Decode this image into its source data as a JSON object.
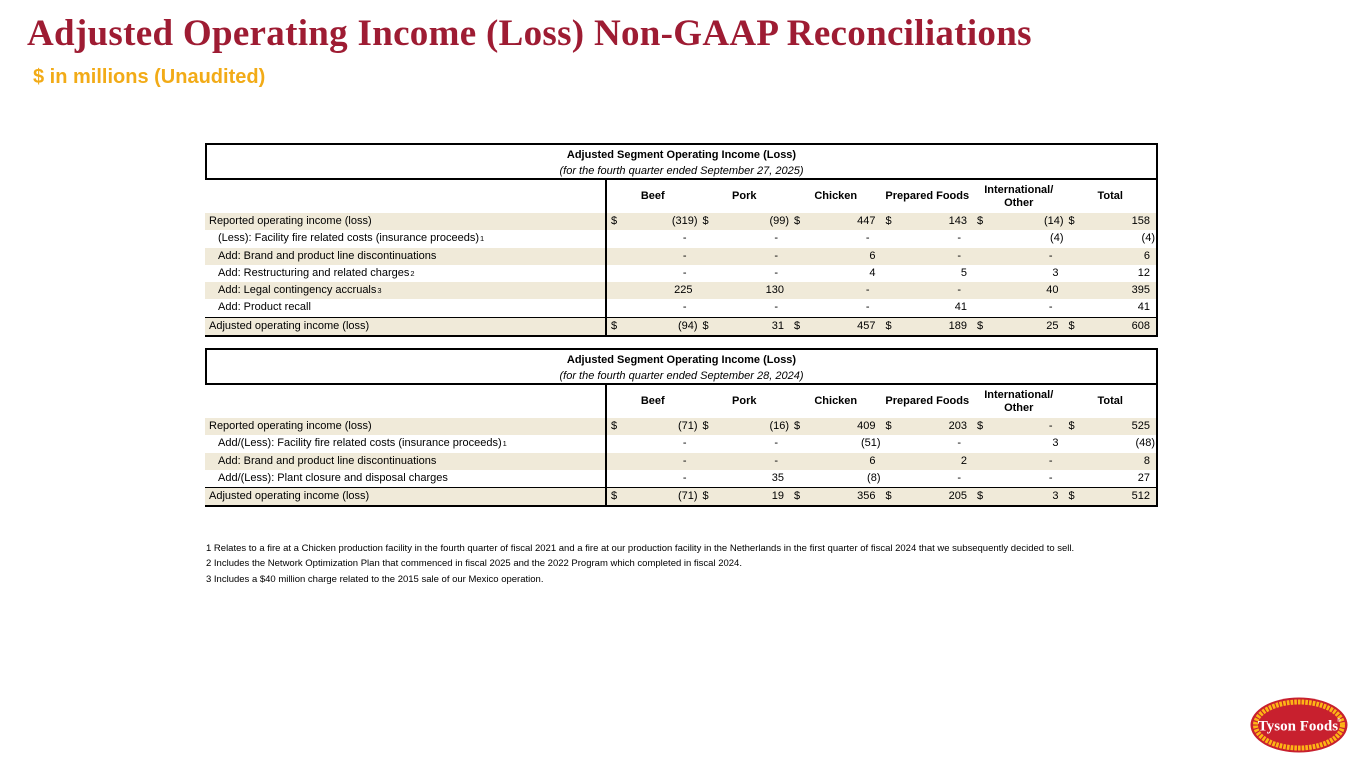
{
  "header": {
    "title": "Adjusted Operating Income (Loss) Non-GAAP Reconciliations",
    "subtitle": "$ in millions (Unaudited)"
  },
  "tables": [
    {
      "title": "Adjusted Segment Operating Income (Loss)",
      "period": "(for the fourth quarter ended September 27, 2025)",
      "columns": [
        "Beef",
        "Pork",
        "Chicken",
        "Prepared Foods",
        "International/Other",
        "Total"
      ],
      "rows": [
        {
          "label": "Reported operating income (loss)",
          "sup": "",
          "indent": false,
          "dollar": true,
          "shaded": true,
          "total": false,
          "values": [
            "(319)",
            "(99)",
            "447",
            "143",
            "(14)",
            "158"
          ]
        },
        {
          "label": "(Less): Facility fire related costs (insurance proceeds)",
          "sup": "1",
          "indent": true,
          "dollar": false,
          "shaded": false,
          "total": false,
          "values": [
            "-",
            "-",
            "-",
            "-",
            "(4)",
            "(4)"
          ]
        },
        {
          "label": "Add: Brand and product line discontinuations",
          "sup": "",
          "indent": true,
          "dollar": false,
          "shaded": true,
          "total": false,
          "values": [
            "-",
            "-",
            "6",
            "-",
            "-",
            "6"
          ]
        },
        {
          "label": "Add: Restructuring and related charges",
          "sup": "2",
          "indent": true,
          "dollar": false,
          "shaded": false,
          "total": false,
          "values": [
            "-",
            "-",
            "4",
            "5",
            "3",
            "12"
          ]
        },
        {
          "label": "Add: Legal contingency accruals",
          "sup": "3",
          "indent": true,
          "dollar": false,
          "shaded": true,
          "total": false,
          "values": [
            "225",
            "130",
            "-",
            "-",
            "40",
            "395"
          ]
        },
        {
          "label": "Add: Product recall",
          "sup": "",
          "indent": true,
          "dollar": false,
          "shaded": false,
          "total": false,
          "values": [
            "-",
            "-",
            "-",
            "41",
            "-",
            "41"
          ]
        },
        {
          "label": "Adjusted operating income (loss)",
          "sup": "",
          "indent": false,
          "dollar": true,
          "shaded": true,
          "total": true,
          "values": [
            "(94)",
            "31",
            "457",
            "189",
            "25",
            "608"
          ]
        }
      ]
    },
    {
      "title": "Adjusted Segment Operating Income (Loss)",
      "period": "(for the fourth quarter ended September 28, 2024)",
      "columns": [
        "Beef",
        "Pork",
        "Chicken",
        "Prepared Foods",
        "International/Other",
        "Total"
      ],
      "rows": [
        {
          "label": "Reported operating income (loss)",
          "sup": "",
          "indent": false,
          "dollar": true,
          "shaded": true,
          "total": false,
          "values": [
            "(71)",
            "(16)",
            "409",
            "203",
            "-",
            "525"
          ]
        },
        {
          "label": "Add/(Less): Facility fire related costs (insurance proceeds)",
          "sup": "1",
          "indent": true,
          "dollar": false,
          "shaded": false,
          "total": false,
          "values": [
            "-",
            "-",
            "(51)",
            "-",
            "3",
            "(48)"
          ]
        },
        {
          "label": "Add: Brand and product line discontinuations",
          "sup": "",
          "indent": true,
          "dollar": false,
          "shaded": true,
          "total": false,
          "values": [
            "-",
            "-",
            "6",
            "2",
            "-",
            "8"
          ]
        },
        {
          "label": "Add/(Less): Plant closure and disposal charges",
          "sup": "",
          "indent": true,
          "dollar": false,
          "shaded": false,
          "total": false,
          "values": [
            "-",
            "35",
            "(8)",
            "-",
            "-",
            "27"
          ]
        },
        {
          "label": "Adjusted operating income (loss)",
          "sup": "",
          "indent": false,
          "dollar": true,
          "shaded": true,
          "total": true,
          "values": [
            "(71)",
            "19",
            "356",
            "205",
            "3",
            "512"
          ]
        }
      ]
    }
  ],
  "footnotes": [
    "1 Relates to a fire at a Chicken production facility in the fourth quarter of fiscal 2021 and a fire at our production facility in the Netherlands in the first quarter of fiscal 2024 that we subsequently decided to sell.",
    "2 Includes the Network Optimization Plan that commenced in fiscal 2025 and the 2022 Program which completed in fiscal 2024.",
    "3 Includes a $40 million charge related to the 2015 sale of our Mexico operation."
  ],
  "logo": {
    "label": "Tyson Foods",
    "red": "#c8202e",
    "yellow": "#fdb515"
  },
  "colors": {
    "title_maroon": "#9e1c33",
    "subtitle_gold": "#f2ab17",
    "row_shade": "#f0ead9",
    "table_border": "#000000"
  }
}
